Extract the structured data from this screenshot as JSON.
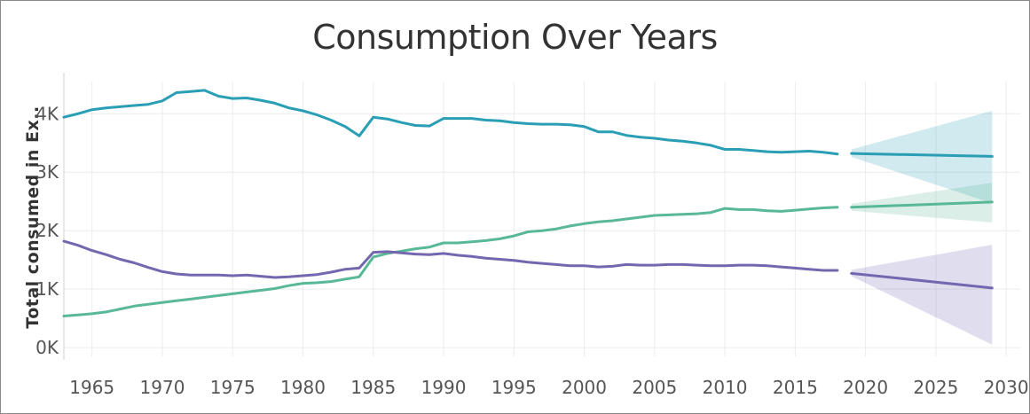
{
  "chart_data": {
    "type": "line",
    "title": "Consumption Over Years",
    "ylabel": "Total consumed in Ex..",
    "xlabel": "",
    "xlim": [
      1963,
      2031
    ],
    "ylim": [
      -150,
      4550
    ],
    "x_ticks": [
      1965,
      1970,
      1975,
      1980,
      1985,
      1990,
      1995,
      2000,
      2005,
      2010,
      2015,
      2020,
      2025,
      2030
    ],
    "y_ticks": [
      {
        "value": 0,
        "label": "0K"
      },
      {
        "value": 1000,
        "label": "1K"
      },
      {
        "value": 2000,
        "label": "2K"
      },
      {
        "value": 3000,
        "label": "3K"
      },
      {
        "value": 4000,
        "label": "4K"
      }
    ],
    "grid": true,
    "series": [
      {
        "color": "#2a9eb5",
        "x": [
          1963,
          1964,
          1965,
          1966,
          1967,
          1968,
          1969,
          1970,
          1971,
          1972,
          1973,
          1974,
          1975,
          1976,
          1977,
          1978,
          1979,
          1980,
          1981,
          1982,
          1983,
          1984,
          1985,
          1986,
          1987,
          1988,
          1989,
          1990,
          1991,
          1992,
          1993,
          1994,
          1995,
          1996,
          1997,
          1998,
          1999,
          2000,
          2001,
          2002,
          2003,
          2004,
          2005,
          2006,
          2007,
          2008,
          2009,
          2010,
          2011,
          2012,
          2013,
          2014,
          2015,
          2016,
          2017,
          2018
        ],
        "y": [
          3940,
          4000,
          4070,
          4100,
          4120,
          4140,
          4160,
          4220,
          4360,
          4380,
          4400,
          4300,
          4260,
          4270,
          4230,
          4180,
          4100,
          4050,
          3980,
          3890,
          3780,
          3620,
          3940,
          3910,
          3850,
          3800,
          3790,
          3920,
          3920,
          3920,
          3890,
          3880,
          3850,
          3830,
          3820,
          3820,
          3810,
          3780,
          3690,
          3690,
          3630,
          3600,
          3580,
          3550,
          3530,
          3500,
          3460,
          3390,
          3390,
          3370,
          3350,
          3340,
          3350,
          3360,
          3340,
          3310
        ],
        "forecast_x": [
          2019,
          2029
        ],
        "forecast_y": [
          3320,
          3270
        ],
        "band_lower": [
          3260,
          2470
        ],
        "band_upper": [
          3390,
          4050
        ]
      },
      {
        "color": "#59b896",
        "x": [
          1963,
          1964,
          1965,
          1966,
          1967,
          1968,
          1969,
          1970,
          1971,
          1972,
          1973,
          1974,
          1975,
          1976,
          1977,
          1978,
          1979,
          1980,
          1981,
          1982,
          1983,
          1984,
          1985,
          1986,
          1987,
          1988,
          1989,
          1990,
          1991,
          1992,
          1993,
          1994,
          1995,
          1996,
          1997,
          1998,
          1999,
          2000,
          2001,
          2002,
          2003,
          2004,
          2005,
          2006,
          2007,
          2008,
          2009,
          2010,
          2011,
          2012,
          2013,
          2014,
          2015,
          2016,
          2017,
          2018
        ],
        "y": [
          540,
          560,
          580,
          610,
          660,
          710,
          740,
          770,
          800,
          830,
          860,
          890,
          920,
          950,
          980,
          1010,
          1060,
          1100,
          1110,
          1130,
          1170,
          1210,
          1550,
          1610,
          1650,
          1690,
          1720,
          1790,
          1790,
          1810,
          1830,
          1860,
          1910,
          1980,
          2000,
          2030,
          2080,
          2120,
          2150,
          2170,
          2200,
          2230,
          2260,
          2270,
          2280,
          2290,
          2310,
          2380,
          2360,
          2360,
          2340,
          2330,
          2350,
          2370,
          2390,
          2400
        ],
        "forecast_x": [
          2019,
          2029
        ],
        "forecast_y": [
          2400,
          2490
        ],
        "band_lower": [
          2340,
          2140
        ],
        "band_upper": [
          2460,
          2820
        ]
      },
      {
        "color": "#7467b0",
        "x": [
          1963,
          1964,
          1965,
          1966,
          1967,
          1968,
          1969,
          1970,
          1971,
          1972,
          1973,
          1974,
          1975,
          1976,
          1977,
          1978,
          1979,
          1980,
          1981,
          1982,
          1983,
          1984,
          1985,
          1986,
          1987,
          1988,
          1989,
          1990,
          1991,
          1992,
          1993,
          1994,
          1995,
          1996,
          1997,
          1998,
          1999,
          2000,
          2001,
          2002,
          2003,
          2004,
          2005,
          2006,
          2007,
          2008,
          2009,
          2010,
          2011,
          2012,
          2013,
          2014,
          2015,
          2016,
          2017,
          2018
        ],
        "y": [
          1820,
          1750,
          1660,
          1590,
          1510,
          1450,
          1370,
          1300,
          1260,
          1240,
          1240,
          1240,
          1230,
          1240,
          1220,
          1200,
          1210,
          1230,
          1250,
          1290,
          1340,
          1360,
          1630,
          1640,
          1620,
          1600,
          1590,
          1610,
          1580,
          1560,
          1530,
          1510,
          1490,
          1460,
          1440,
          1420,
          1400,
          1400,
          1380,
          1390,
          1420,
          1410,
          1410,
          1420,
          1420,
          1410,
          1400,
          1400,
          1410,
          1410,
          1400,
          1380,
          1360,
          1340,
          1320,
          1320
        ],
        "forecast_x": [
          2019,
          2029
        ],
        "forecast_y": [
          1270,
          1020
        ],
        "band_lower": [
          1220,
          50
        ],
        "band_upper": [
          1330,
          1760
        ]
      }
    ]
  }
}
